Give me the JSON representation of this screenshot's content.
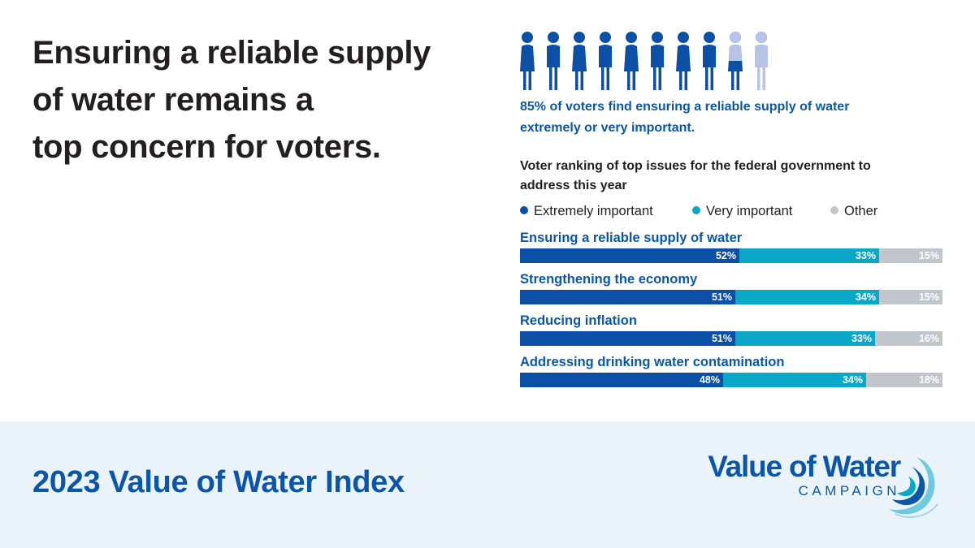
{
  "headline": {
    "lines": [
      "Ensuring a reliable supply",
      "of water remains a",
      "top concern for voters."
    ]
  },
  "stat": {
    "lines": [
      "85% of voters find ensuring a reliable supply of water",
      "extremely or very important."
    ],
    "percent": 85,
    "icon_count": 10
  },
  "chart_data": {
    "type": "bar",
    "orientation": "horizontal",
    "stacked": true,
    "title_lines": [
      "Voter ranking of top issues for the federal government to",
      "address this year"
    ],
    "categories": [
      "Ensuring a reliable supply of water",
      "Strengthening the economy",
      "Reducing inflation",
      "Addressing drinking water contamination"
    ],
    "series": [
      {
        "name": "Extremely important",
        "color": "#0b4fa6",
        "values": [
          52,
          51,
          51,
          48
        ]
      },
      {
        "name": "Very important",
        "color": "#0aa8c6",
        "values": [
          33,
          34,
          33,
          34
        ]
      },
      {
        "name": "Other",
        "color": "#c0c6cc",
        "values": [
          15,
          15,
          16,
          18
        ]
      }
    ],
    "value_suffix": "%",
    "xlim": [
      0,
      100
    ]
  },
  "footer": {
    "title": "2023 Value of Water Index",
    "logo_main": "Value of Water",
    "logo_sub": "CAMPAIGN"
  },
  "colors": {
    "brand_blue": "#0b56a6",
    "icon_dark": "#0b4fa6",
    "icon_light": "#b7c4e6",
    "footer_bg": "#ebf3fa"
  }
}
